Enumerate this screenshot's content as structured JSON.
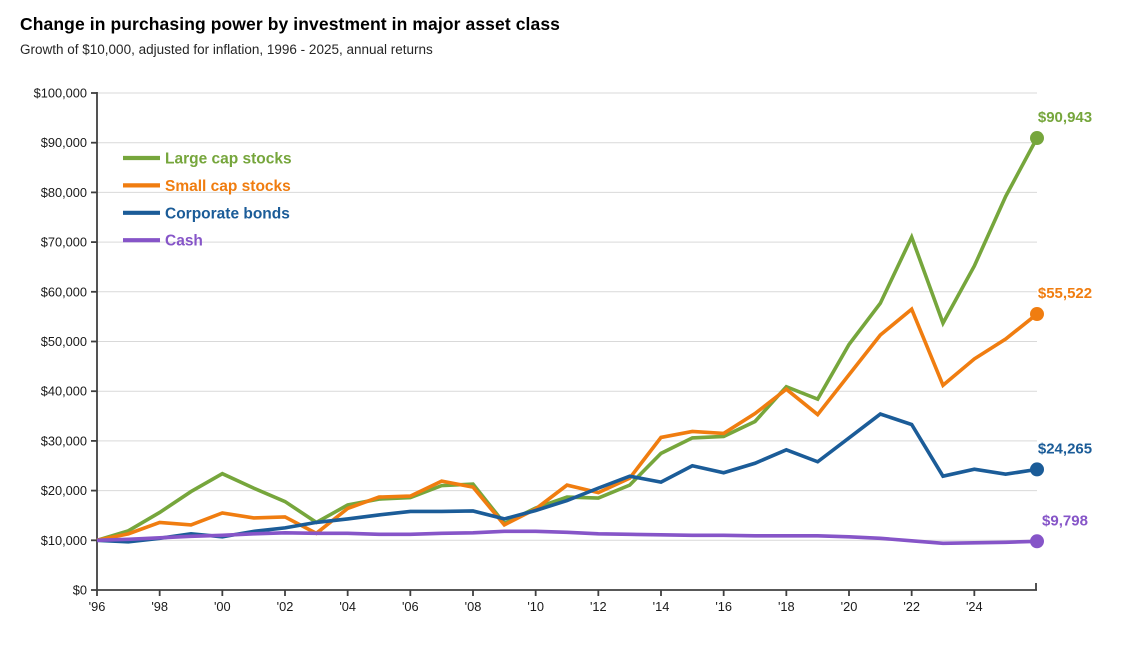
{
  "chart_data": {
    "type": "line",
    "title": "Change in purchasing power by investment in major asset class",
    "subtitle": "Growth of $10,000, adjusted for inflation, 1996 - 2025, annual returns",
    "start_year": 1996,
    "end_year": 2025,
    "values_description": "Each series starts at $10,000 at the beginning of 1996 followed by inflation-adjusted year-end values for 1996 through 2025",
    "ylim": [
      0,
      100000
    ],
    "grid": true,
    "legend_position": "top-left-inside",
    "colors": {
      "grid": "#D9D9D9",
      "axis": "#404040"
    },
    "y_ticks": [
      {
        "label": "$0",
        "value": 0
      },
      {
        "label": "$10,000",
        "value": 10000
      },
      {
        "label": "$20,000",
        "value": 20000
      },
      {
        "label": "$30,000",
        "value": 30000
      },
      {
        "label": "$40,000",
        "value": 40000
      },
      {
        "label": "$50,000",
        "value": 50000
      },
      {
        "label": "$60,000",
        "value": 60000
      },
      {
        "label": "$70,000",
        "value": 70000
      },
      {
        "label": "$80,000",
        "value": 80000
      },
      {
        "label": "$90,000",
        "value": 90000
      },
      {
        "label": "$100,000",
        "value": 100000
      }
    ],
    "x_ticks": [
      {
        "label": "'96",
        "year": 1996
      },
      {
        "label": "'98",
        "year": 1998
      },
      {
        "label": "'00",
        "year": 2000
      },
      {
        "label": "'02",
        "year": 2002
      },
      {
        "label": "'04",
        "year": 2004
      },
      {
        "label": "'06",
        "year": 2006
      },
      {
        "label": "'08",
        "year": 2008
      },
      {
        "label": "'10",
        "year": 2010
      },
      {
        "label": "'12",
        "year": 2012
      },
      {
        "label": "'14",
        "year": 2014
      },
      {
        "label": "'16",
        "year": 2016
      },
      {
        "label": "'18",
        "year": 2018
      },
      {
        "label": "'20",
        "year": 2020
      },
      {
        "label": "'22",
        "year": 2022
      },
      {
        "label": "'24",
        "year": 2024
      }
    ],
    "series": [
      {
        "name": "Large cap stocks",
        "color": "#76A63C",
        "end_label": "$90,943",
        "end_value": 90943,
        "values": [
          10000,
          11900,
          15600,
          19800,
          23400,
          20500,
          17800,
          13600,
          17100,
          18300,
          18600,
          21000,
          21300,
          13400,
          16500,
          18700,
          18500,
          21100,
          27500,
          30600,
          30900,
          33900,
          40900,
          38400,
          49400,
          57700,
          71000,
          53700,
          65200,
          79200,
          90943
        ]
      },
      {
        "name": "Small cap stocks",
        "color": "#F07D10",
        "end_label": "$55,522",
        "end_value": 55522,
        "values": [
          10000,
          11300,
          13600,
          13100,
          15500,
          14500,
          14700,
          11400,
          16400,
          18700,
          18900,
          21900,
          20700,
          13100,
          16300,
          21100,
          19600,
          22500,
          30700,
          31900,
          31500,
          35500,
          40400,
          35300,
          43300,
          51300,
          56500,
          41200,
          46500,
          50500,
          55522
        ]
      },
      {
        "name": "Corporate bonds",
        "color": "#1B5C98",
        "end_label": "$24,265",
        "end_value": 24265,
        "values": [
          10000,
          9700,
          10400,
          11300,
          10700,
          11800,
          12500,
          13600,
          14300,
          15100,
          15800,
          15800,
          15900,
          14300,
          16000,
          18000,
          20500,
          22900,
          21700,
          25000,
          23600,
          25500,
          28200,
          25800,
          30600,
          35400,
          33300,
          22900,
          24300,
          23300,
          24265
        ]
      },
      {
        "name": "Cash",
        "color": "#8655C8",
        "end_label": "$9,798",
        "end_value": 9798,
        "values": [
          10000,
          10200,
          10500,
          10800,
          11000,
          11300,
          11500,
          11400,
          11400,
          11200,
          11200,
          11400,
          11500,
          11800,
          11800,
          11600,
          11300,
          11200,
          11100,
          11000,
          11000,
          10900,
          10900,
          10900,
          10700,
          10400,
          9900,
          9400,
          9500,
          9600,
          9798
        ]
      }
    ]
  }
}
